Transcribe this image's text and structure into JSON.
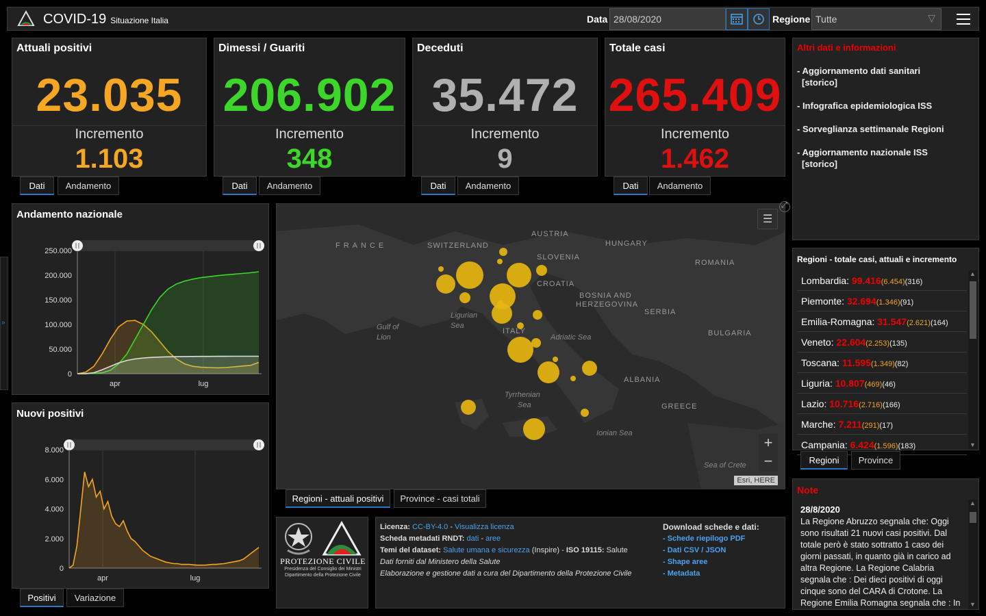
{
  "header": {
    "title": "COVID-19",
    "subtitle": "Situazione Italia",
    "date_label": "Data",
    "date_value": "28/08/2020",
    "region_label": "Regione",
    "region_value": "Tutte"
  },
  "kpis": [
    {
      "title": "Attuali positivi",
      "value": "23.035",
      "inc_label": "Incremento",
      "inc_value": "1.103",
      "color": "#f5a623",
      "tabs": [
        "Dati",
        "Andamento"
      ]
    },
    {
      "title": "Dimessi / Guariti",
      "value": "206.902",
      "inc_label": "Incremento",
      "inc_value": "348",
      "color": "#3dd62a",
      "tabs": [
        "Dati",
        "Andamento"
      ]
    },
    {
      "title": "Deceduti",
      "value": "35.472",
      "inc_label": "Incremento",
      "inc_value": "9",
      "color": "#b0b0b0",
      "tabs": [
        "Dati",
        "Andamento"
      ]
    },
    {
      "title": "Totale casi",
      "value": "265.409",
      "inc_label": "Incremento",
      "inc_value": "1.462",
      "color": "#e01010",
      "tabs": [
        "Dati",
        "Andamento"
      ]
    }
  ],
  "info": {
    "title": "Altri dati e informazioni",
    "items": [
      "- Aggiornamento dati sanitari",
      "[storico]",
      "- Infografica epidemiologica ISS",
      "- Sorveglianza settimanale Regioni",
      "- Aggiornamento nazionale ISS",
      "[storico]"
    ]
  },
  "andamento": {
    "title": "Andamento nazionale",
    "y_ticks": [
      "250.000",
      "200.000",
      "150.000",
      "100.000",
      "50.000",
      "0"
    ],
    "x_ticks": [
      "apr",
      "lug"
    ]
  },
  "nuovi": {
    "title": "Nuovi positivi",
    "y_ticks": [
      "8.000",
      "6.000",
      "4.000",
      "2.000",
      "0"
    ],
    "x_ticks": [
      "apr",
      "lug"
    ],
    "tabs": [
      "Positivi",
      "Variazione"
    ]
  },
  "chart_data": [
    {
      "type": "area",
      "title": "Andamento nazionale",
      "ylim": [
        0,
        250000
      ],
      "x_ticks": [
        "apr",
        "lug"
      ],
      "series": [
        {
          "color": "#f5a623",
          "values": [
            0,
            3000,
            15000,
            40000,
            70000,
            95000,
            107000,
            108000,
            100000,
            85000,
            65000,
            45000,
            30000,
            20000,
            15000,
            13000,
            12500,
            12000,
            12500,
            14000,
            15500,
            17000,
            23000
          ]
        },
        {
          "color": "#3dd62a",
          "values": [
            0,
            100,
            500,
            2000,
            7000,
            20000,
            40000,
            70000,
            100000,
            130000,
            155000,
            172000,
            182000,
            188000,
            192000,
            195000,
            197000,
            199000,
            200500,
            202000,
            203500,
            205000,
            207000
          ]
        },
        {
          "color": "#dddddd",
          "values": [
            0,
            200,
            2000,
            8000,
            15000,
            22000,
            27000,
            30000,
            32000,
            33000,
            33800,
            34300,
            34600,
            34800,
            35000,
            35100,
            35200,
            35250,
            35300,
            35350,
            35400,
            35430,
            35470
          ]
        }
      ]
    },
    {
      "type": "line",
      "title": "Nuovi positivi",
      "ylim": [
        0,
        8000
      ],
      "x_ticks": [
        "apr",
        "lug"
      ],
      "series": [
        {
          "color": "#f5a623",
          "values": [
            0,
            200,
            1500,
            4000,
            6500,
            5500,
            6000,
            4800,
            5200,
            4000,
            4500,
            3500,
            3000,
            2800,
            3200,
            2500,
            2000,
            1800,
            1500,
            1200,
            1000,
            800,
            700,
            600,
            500,
            400,
            350,
            300,
            300,
            250,
            250,
            250,
            220,
            200,
            200,
            200,
            220,
            250,
            250,
            280,
            300,
            350,
            400,
            450,
            500,
            600,
            800,
            1000,
            1200,
            1400
          ]
        }
      ]
    }
  ],
  "map": {
    "labels": [
      "FRANCE",
      "SWITZERLAND",
      "AUSTRIA",
      "HUNGARY",
      "SLOVENIA",
      "CROATIA",
      "ROMANIA",
      "BOSNIA AND",
      "HERZEGOVINA",
      "SERBIA",
      "BULGARIA",
      "ITALY",
      "ALBANIA",
      "GREECE"
    ],
    "seas": [
      "Ligurian",
      "Sea",
      "Gulf of",
      "Lion",
      "Adriatic Sea",
      "Tyrrhenian",
      "Sea",
      "Ionian Sea",
      "Sea of Crete"
    ],
    "attribution": "Esri, HERE",
    "tabs": [
      "Regioni - attuali positivi",
      "Province - casi totali"
    ]
  },
  "regioni": {
    "title": "Regioni - totale casi, attuali e incremento",
    "rows": [
      {
        "name": "Lombardia:",
        "total": "99.416",
        "curr": "(6.454)",
        "inc": "(316)"
      },
      {
        "name": "Piemonte:",
        "total": "32.694",
        "curr": "(1.346)",
        "inc": "(91)"
      },
      {
        "name": "Emilia-Romagna:",
        "total": "31.547",
        "curr": "(2.621)",
        "inc": "(164)"
      },
      {
        "name": "Veneto:",
        "total": "22.604",
        "curr": "(2.253)",
        "inc": "(135)"
      },
      {
        "name": "Toscana:",
        "total": "11.595",
        "curr": "(1.349)",
        "inc": "(82)"
      },
      {
        "name": "Liguria:",
        "total": "10.807",
        "curr": "(469)",
        "inc": "(46)"
      },
      {
        "name": "Lazio:",
        "total": "10.716",
        "curr": "(2.716)",
        "inc": "(166)"
      },
      {
        "name": "Marche:",
        "total": "7.211",
        "curr": "(291)",
        "inc": "(17)"
      },
      {
        "name": "Campania:",
        "total": "6.424",
        "curr": "(1.596)",
        "inc": "(183)"
      }
    ],
    "tabs": [
      "Regioni",
      "Province"
    ]
  },
  "note": {
    "title": "Note",
    "date": "28/8/2020",
    "text": "La Regione Abruzzo segnala che: Oggi sono risultati 21 nuovi casi positivi. Dal totale però è stato sottratto 1 caso dei giorni passati, in quanto già in carico ad altra Regione. La Regione Calabria segnala che : Dei dieci positivi di oggi cinque sono del CARA di Crotone. La Regione Emilia Romagna segnala che : In seguito a verifica"
  },
  "footer": {
    "logo_title": "PROTEZIONE CIVILE",
    "logo_sub1": "Presidenza del Consiglio dei Ministri",
    "logo_sub2": "Dipartimento della Protezione Civile",
    "licenza_label": "Licenza:",
    "licenza_link1": "CC-BY-4.0",
    "licenza_sep": "-",
    "licenza_link2": "Visualizza licenza",
    "meta_label": "Scheda metadati RNDT:",
    "meta_link1": "dati",
    "meta_sep": "-",
    "meta_link2": "aree",
    "temi_label": "Temi del dataset:",
    "temi_link": "Salute umana e sicurezza",
    "temi_rest": "(Inspire) -",
    "iso_label": "ISO 19115:",
    "iso_value": "Salute",
    "dati_forniti": "Dati forniti dal Ministero della Salute",
    "elaborazione": "Elaborazione e gestione dati a cura del Dipartimento della Protezione Civile",
    "download_title": "Download schede e dati:",
    "downloads": [
      "- Schede riepilogo PDF",
      "- Dati CSV / JSON",
      "- Shape aree",
      "- Metadata"
    ]
  },
  "colors": {
    "accent": "#2a78c8",
    "positivi": "#f5a623",
    "guariti": "#3dd62a",
    "deceduti": "#b0b0b0",
    "totale": "#e01010"
  }
}
